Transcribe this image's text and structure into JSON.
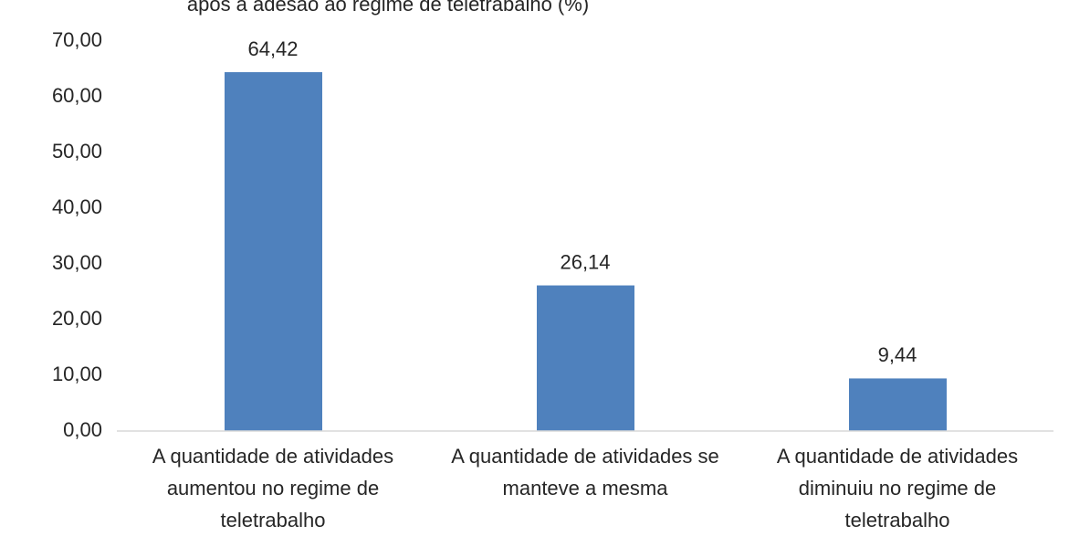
{
  "chart_data": {
    "type": "bar",
    "title": "após a adesão ao regime de teletrabalho (%)",
    "categories": [
      "A quantidade de atividades aumentou no regime de teletrabalho",
      "A quantidade de atividades se manteve a mesma",
      "A quantidade de atividades diminuiu no regime de teletrabalho"
    ],
    "values": [
      64.42,
      26.14,
      9.44
    ],
    "value_labels": [
      "64,42",
      "26,14",
      "9,44"
    ],
    "color": "#4f81bd",
    "ylim": [
      0,
      70
    ],
    "yticks": [
      {
        "value": 0,
        "label": "0,00"
      },
      {
        "value": 10,
        "label": "10,00"
      },
      {
        "value": 20,
        "label": "20,00"
      },
      {
        "value": 30,
        "label": "30,00"
      },
      {
        "value": 40,
        "label": "40,00"
      },
      {
        "value": 50,
        "label": "50,00"
      },
      {
        "value": 60,
        "label": "60,00"
      },
      {
        "value": 70,
        "label": "70,00"
      }
    ],
    "grid": false
  }
}
